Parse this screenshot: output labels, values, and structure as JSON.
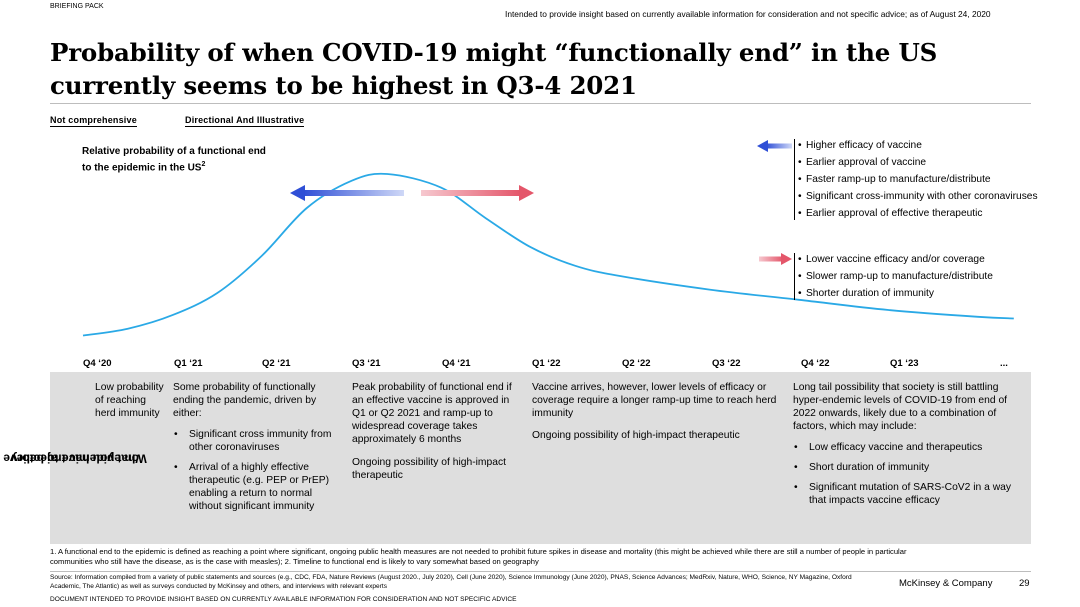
{
  "header": {
    "pack_label": "BRIEFING PACK",
    "disclaimer": "Intended to provide insight based on currently available information for consideration and not specific advice; as of August 24, 2020"
  },
  "title": "Probability of when COVID-19 might “functionally end” in the US currently seems to be highest in Q3-4 2021",
  "tags": [
    "Not comprehensive",
    "Directional And Illustrative"
  ],
  "chart_data": {
    "type": "line",
    "title": "Relative probability of a functional end to the epidemic in the US",
    "ylabel_line1": "Relative probability of a functional end",
    "ylabel_line2": "to the epidemic in the US",
    "ylabel_sup": "2",
    "categories": [
      "Q4 ‘20",
      "Q1 ‘21",
      "Q2 ‘21",
      "Q3 ‘21",
      "Q4 ‘21",
      "Q1 ‘22",
      "Q2 ‘22",
      "Q3 ‘22",
      "Q4 ‘22",
      "Q1 ‘23",
      "..."
    ],
    "series": [
      {
        "name": "Relative probability of a functional end",
        "x": [
          0,
          0.5,
          1,
          1.5,
          2,
          2.5,
          3,
          3.4,
          4,
          4.5,
          5,
          5.5,
          6,
          7,
          8,
          9,
          10,
          10.4
        ],
        "values": [
          0.05,
          0.09,
          0.17,
          0.3,
          0.52,
          0.8,
          0.96,
          1.0,
          0.92,
          0.74,
          0.57,
          0.46,
          0.4,
          0.32,
          0.26,
          0.2,
          0.16,
          0.15
        ]
      }
    ],
    "ylim": [
      0,
      1.05
    ],
    "y_axis_shown": false,
    "arrows": [
      {
        "direction": "left",
        "meaning": "earlier end",
        "color": "#3b5bdb"
      },
      {
        "direction": "right",
        "meaning": "later end",
        "color": "#e86a7a"
      }
    ]
  },
  "legend_earlier": {
    "arrow_color": "#3b5bdb",
    "items": [
      "Higher efficacy of vaccine",
      "Earlier approval of vaccine",
      "Faster ramp-up to manufacture/distribute",
      "Significant cross-immunity with other coronaviruses",
      "Earlier approval of effective therapeutic"
    ]
  },
  "legend_later": {
    "arrow_color": "#e86a7a",
    "items": [
      "Lower vaccine efficacy and/or coverage",
      "Slower ramp-up to manufacture/distribute",
      "Shorter duration of immunity"
    ]
  },
  "belief_label": "What you have to believe on epidemic trajectory",
  "belief_label_line1": "What you have to believe",
  "belief_label_line2": "on epidemic trajectory",
  "beliefs": {
    "c1": {
      "text": "Low probability of reaching herd immunity"
    },
    "c2": {
      "intro": "Some probability of functionally ending the pandemic, driven by either:",
      "bullets": [
        "Significant cross immunity from other coronaviruses",
        "Arrival of a highly effective therapeutic (e.g. PEP or PrEP) enabling a return to normal without significant immunity"
      ]
    },
    "c3": {
      "p1": "Peak probability of functional end if an effective vaccine is approved in Q1 or Q2 2021 and ramp-up to widespread coverage takes approximately 6 months",
      "p2": "Ongoing possibility of high-impact therapeutic"
    },
    "c4": {
      "p1": "Vaccine arrives, however, lower levels of efficacy or coverage require a longer ramp-up time to reach herd immunity",
      "p2": "Ongoing possibility of high-impact therapeutic"
    },
    "c5": {
      "intro": "Long tail possibility that society is still battling hyper-endemic levels of COVID-19 from end of 2022 onwards, likely due to a combination of factors, which may include:",
      "bullets": [
        "Low efficacy vaccine and therapeutics",
        "Short duration of immunity",
        "Significant mutation of SARS-CoV2 in a way that impacts vaccine efficacy"
      ]
    }
  },
  "footnote": "1. A functional end to the epidemic is defined as reaching a point where significant, ongoing public health measures are not needed to prohibit future spikes in disease and mortality (this might be achieved while there are still a number of people in particular communities who still have the disease, as is the case with measles); 2. Timeline to functional end is likely to vary somewhat based on geography",
  "source": "Source: Information compiled from a variety of public statements and sources (e.g., CDC, FDA, Nature Reviews (August 2020., July 2020), Cell (June 2020), Science Immunology (June 2020), PNAS, Science Advances; MedRxiv, Nature, WHO, Science, NY Magazine, Oxford Academic, The Atlantic) as well as surveys conducted by McKinsey and others, and interviews with relevant experts",
  "bottom_disclaimer": "DOCUMENT INTENDED TO PROVIDE INSIGHT BASED ON CURRENTLY AVAILABLE INFORMATION FOR CONSIDERATION AND NOT SPECIFIC ADVICE",
  "brand": "McKinsey & Company",
  "page_number": "29"
}
